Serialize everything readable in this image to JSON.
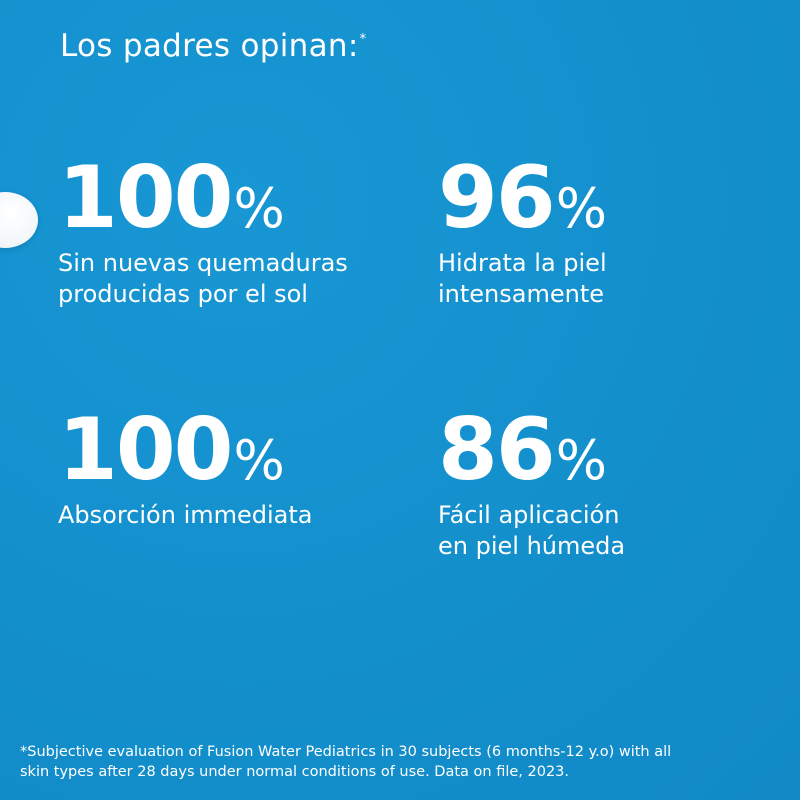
{
  "headline": {
    "text": "Los padres opinan:",
    "marker": "*"
  },
  "stats": [
    {
      "number": "100",
      "percent": "%",
      "caption_lines": [
        "Sin nuevas quemaduras",
        "producidas por el sol"
      ]
    },
    {
      "number": "96",
      "percent": "%",
      "caption_lines": [
        "Hidrata la piel",
        "intensamente"
      ]
    },
    {
      "number": "100",
      "percent": "%",
      "caption_lines": [
        "Absorción immediata"
      ]
    },
    {
      "number": "86",
      "percent": "%",
      "caption_lines": [
        "Fácil aplicación",
        "en piel húmeda"
      ]
    }
  ],
  "footnote": {
    "lines": [
      "*Subjective evaluation of Fusion Water Pediatrics in 30 subjects (6 months-12 y.o) with all",
      "skin types after 28 days under normal conditions of use. Data on file, 2023."
    ]
  },
  "colors": {
    "background": "#138fcc",
    "text": "#ffffff",
    "cream": "#f3f7fa"
  },
  "decoration": {
    "icon": "cream-dollop-icon"
  }
}
